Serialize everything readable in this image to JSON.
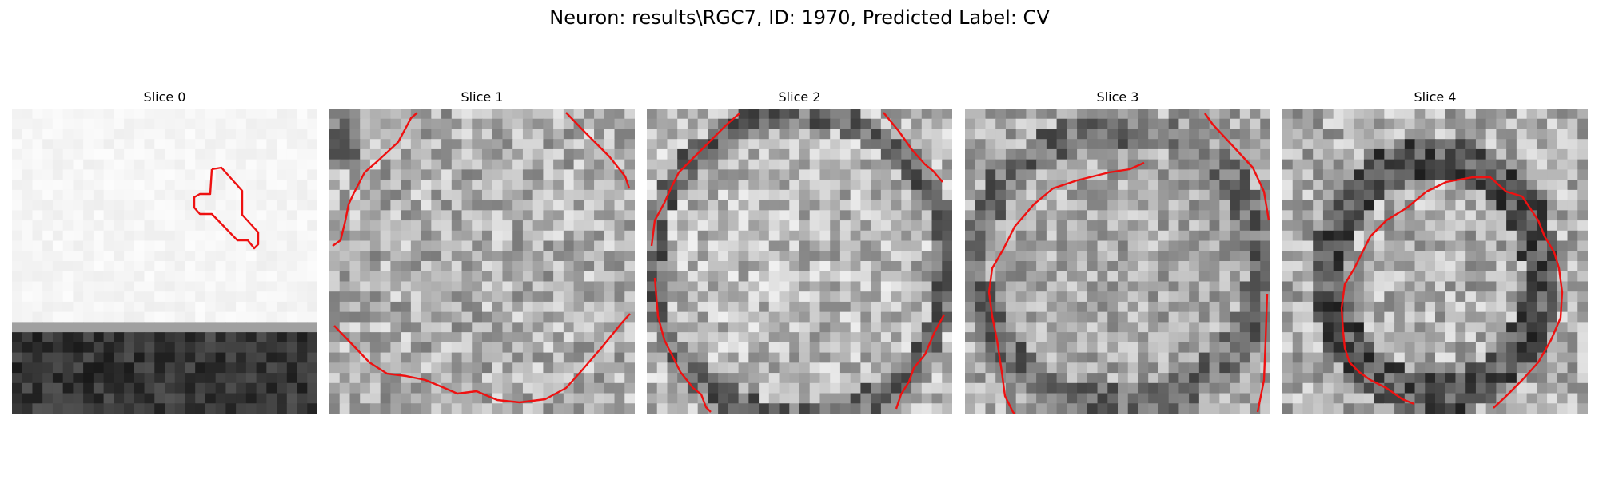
{
  "figure": {
    "title": "Neuron: results\\RGC7, ID: 1970, Predicted Label: CV"
  },
  "panels": [
    {
      "title": "Slice 0"
    },
    {
      "title": "Slice 1"
    },
    {
      "title": "Slice 2"
    },
    {
      "title": "Slice 3"
    },
    {
      "title": "Slice 4"
    }
  ],
  "colors": {
    "contour": "#ee1111"
  }
}
